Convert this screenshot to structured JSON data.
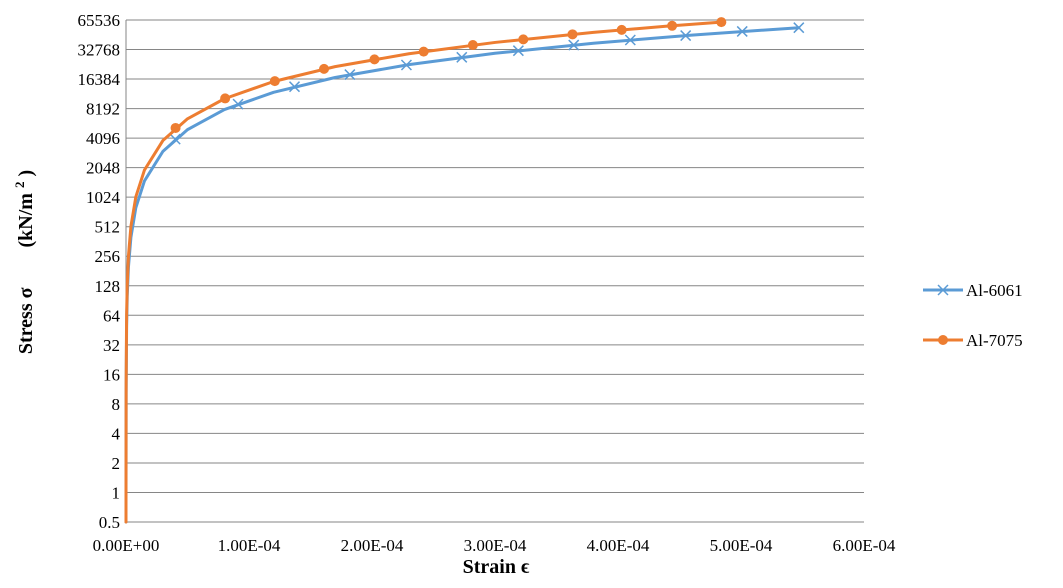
{
  "chart_data": {
    "type": "line",
    "xlabel": "Strain ϵ",
    "ylabel_main": "Stress σ",
    "ylabel_unit_open": "(kN/m",
    "ylabel_unit_sup": "2",
    "ylabel_unit_close": ")",
    "y_scale": "log2",
    "xlim": [
      0,
      0.0006
    ],
    "ylim": [
      0.5,
      65536
    ],
    "x_ticks": [
      "0.00E+00",
      "1.00E-04",
      "2.00E-04",
      "3.00E-04",
      "4.00E-04",
      "5.00E-04",
      "6.00E-04"
    ],
    "x_tick_values": [
      0,
      0.0001,
      0.0002,
      0.0003,
      0.0004,
      0.0005,
      0.0006
    ],
    "y_ticks": [
      "0.5",
      "1",
      "2",
      "4",
      "8",
      "16",
      "32",
      "64",
      "128",
      "256",
      "512",
      "1024",
      "2048",
      "4096",
      "8192",
      "16384",
      "32768",
      "65536"
    ],
    "y_tick_values": [
      0.5,
      1,
      2,
      4,
      8,
      16,
      32,
      64,
      128,
      256,
      512,
      1024,
      2048,
      4096,
      8192,
      16384,
      32768,
      65536
    ],
    "grid": "horizontal",
    "legend_position": "right",
    "series": [
      {
        "name": "Al-6061",
        "color": "#5b9bd5",
        "marker": "x",
        "marker_points": [
          {
            "x": 4e-05,
            "y": 4000
          },
          {
            "x": 9.11e-05,
            "y": 9100
          },
          {
            "x": 0.000137,
            "y": 13700
          },
          {
            "x": 0.000182,
            "y": 18200
          },
          {
            "x": 0.000228,
            "y": 22800
          },
          {
            "x": 0.000273,
            "y": 27300
          },
          {
            "x": 0.000319,
            "y": 31900
          },
          {
            "x": 0.000364,
            "y": 36400
          },
          {
            "x": 0.00041,
            "y": 41000
          },
          {
            "x": 0.000455,
            "y": 45500
          },
          {
            "x": 0.000501,
            "y": 50100
          },
          {
            "x": 0.000547,
            "y": 54700
          }
        ],
        "curve_points": [
          {
            "x": 1e-10,
            "y": 0.01
          },
          {
            "x": 1e-09,
            "y": 0.1
          },
          {
            "x": 1e-08,
            "y": 1
          },
          {
            "x": 1e-07,
            "y": 10
          },
          {
            "x": 5e-07,
            "y": 50
          },
          {
            "x": 1e-06,
            "y": 100
          },
          {
            "x": 2e-06,
            "y": 200
          },
          {
            "x": 4e-06,
            "y": 400
          },
          {
            "x": 8e-06,
            "y": 800
          },
          {
            "x": 1.5e-05,
            "y": 1500
          },
          {
            "x": 3e-05,
            "y": 3000
          },
          {
            "x": 5e-05,
            "y": 5000
          },
          {
            "x": 8e-05,
            "y": 8000
          },
          {
            "x": 0.00012,
            "y": 12000
          },
          {
            "x": 0.00017,
            "y": 17000
          },
          {
            "x": 0.00023,
            "y": 23000
          },
          {
            "x": 0.0003,
            "y": 30000
          },
          {
            "x": 0.00038,
            "y": 38000
          },
          {
            "x": 0.00046,
            "y": 46000
          },
          {
            "x": 0.000547,
            "y": 54700
          }
        ]
      },
      {
        "name": "Al-7075",
        "color": "#ed7d31",
        "marker": "circle",
        "marker_points": [
          {
            "x": 4.03e-05,
            "y": 5200
          },
          {
            "x": 8.06e-05,
            "y": 10400
          },
          {
            "x": 0.000121,
            "y": 15600
          },
          {
            "x": 0.000161,
            "y": 20800
          },
          {
            "x": 0.000202,
            "y": 26000
          },
          {
            "x": 0.000242,
            "y": 31200
          },
          {
            "x": 0.000282,
            "y": 36400
          },
          {
            "x": 0.000323,
            "y": 41600
          },
          {
            "x": 0.000363,
            "y": 46800
          },
          {
            "x": 0.000403,
            "y": 52000
          },
          {
            "x": 0.000444,
            "y": 57200
          },
          {
            "x": 0.000484,
            "y": 62400
          }
        ],
        "curve_points": [
          {
            "x": 1e-10,
            "y": 0.0129
          },
          {
            "x": 1e-09,
            "y": 0.129
          },
          {
            "x": 1e-08,
            "y": 1.29
          },
          {
            "x": 1e-07,
            "y": 12.9
          },
          {
            "x": 5e-07,
            "y": 64.5
          },
          {
            "x": 1e-06,
            "y": 129
          },
          {
            "x": 2e-06,
            "y": 258
          },
          {
            "x": 4e-06,
            "y": 516
          },
          {
            "x": 8e-06,
            "y": 1032
          },
          {
            "x": 1.5e-05,
            "y": 1935
          },
          {
            "x": 3e-05,
            "y": 3870
          },
          {
            "x": 5e-05,
            "y": 6450
          },
          {
            "x": 8e-05,
            "y": 10320
          },
          {
            "x": 0.00012,
            "y": 15480
          },
          {
            "x": 0.00017,
            "y": 21930
          },
          {
            "x": 0.00023,
            "y": 29670
          },
          {
            "x": 0.0003,
            "y": 38700
          },
          {
            "x": 0.00038,
            "y": 49020
          },
          {
            "x": 0.00044,
            "y": 56760
          },
          {
            "x": 0.000484,
            "y": 62400
          }
        ]
      }
    ]
  }
}
